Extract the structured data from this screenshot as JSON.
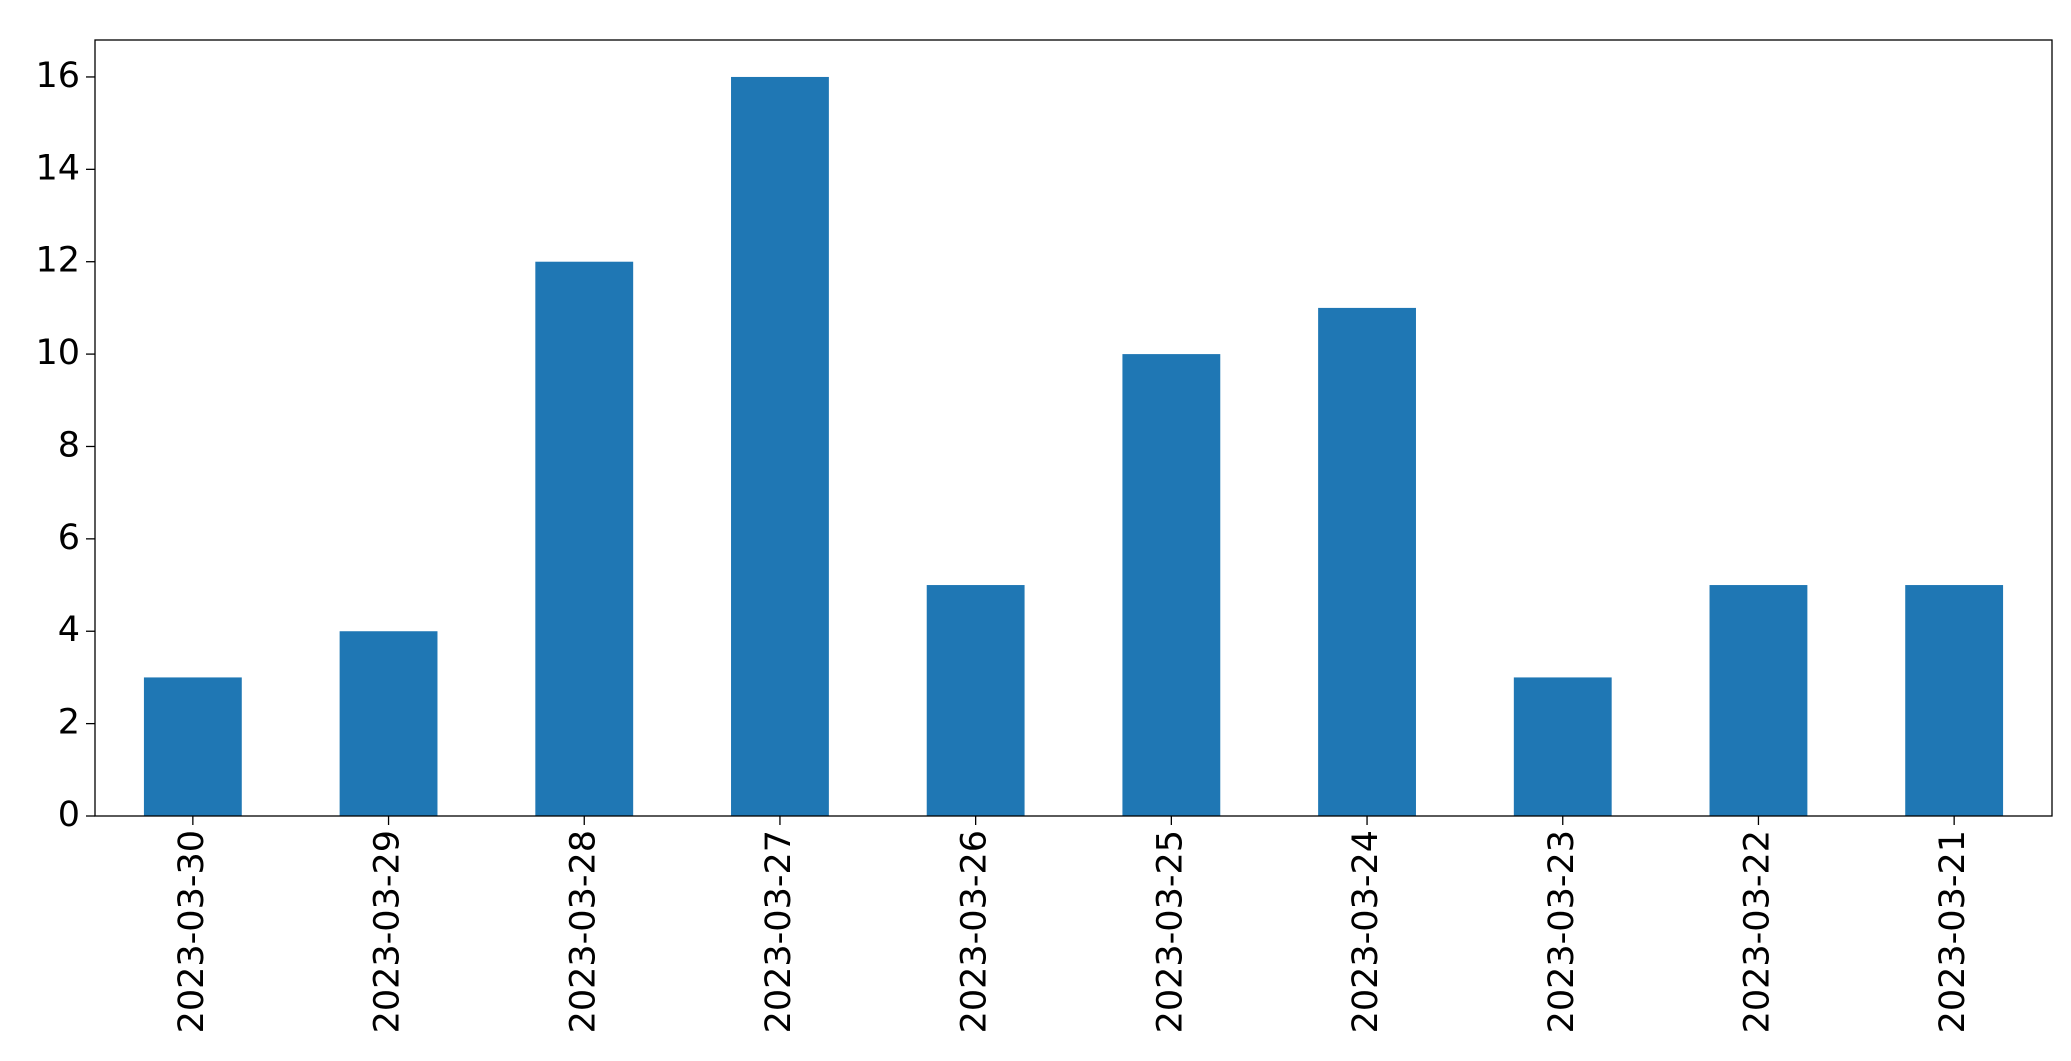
{
  "chart_data": {
    "type": "bar",
    "categories": [
      "2023-03-30",
      "2023-03-29",
      "2023-03-28",
      "2023-03-27",
      "2023-03-26",
      "2023-03-25",
      "2023-03-24",
      "2023-03-23",
      "2023-03-22",
      "2023-03-21"
    ],
    "values": [
      3,
      4,
      12,
      16,
      5,
      10,
      11,
      3,
      5,
      5
    ],
    "color": "#1f77b4",
    "ylim": [
      0,
      16.8
    ],
    "yticks": [
      0,
      2,
      4,
      6,
      8,
      10,
      12,
      14,
      16
    ],
    "grid": false
  }
}
